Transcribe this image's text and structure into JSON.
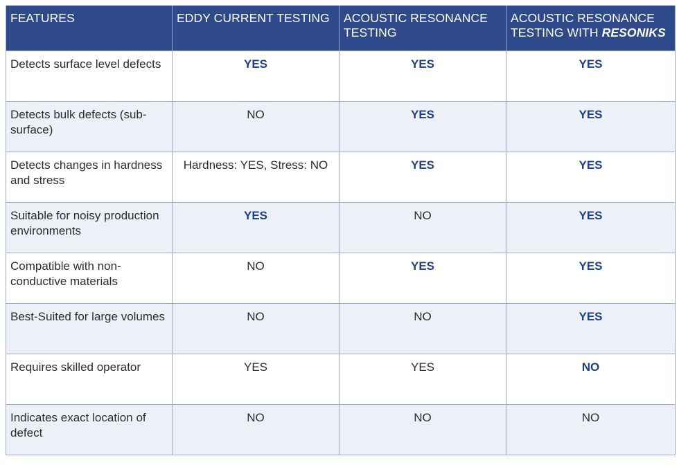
{
  "header": {
    "features": "FEATURES",
    "eddy": "EDDY CURRENT TESTING",
    "acoustic_line1": "ACOUSTIC RESONANCE",
    "acoustic_line2": "TESTING",
    "resoniks_line1": "ACOUSTIC RESONANCE",
    "resoniks_line2_prefix": "TESTING WITH ",
    "resoniks_brand": "RESONIKS"
  },
  "rows": [
    {
      "feature": "Detects surface level defects",
      "eddy": "YES",
      "eddy_bold": true,
      "acoustic": "YES",
      "acoustic_bold": true,
      "resoniks": "YES",
      "resoniks_bold": true
    },
    {
      "feature": "Detects bulk defects (sub-surface)",
      "eddy": "NO",
      "eddy_bold": false,
      "acoustic": "YES",
      "acoustic_bold": true,
      "resoniks": "YES",
      "resoniks_bold": true
    },
    {
      "feature": "Detects changes in hardness and stress",
      "eddy": "Hardness: YES, Stress: NO",
      "eddy_bold": false,
      "acoustic": "YES",
      "acoustic_bold": true,
      "resoniks": "YES",
      "resoniks_bold": true
    },
    {
      "feature": "Suitable for noisy production environments",
      "eddy": "YES",
      "eddy_bold": true,
      "acoustic": "NO",
      "acoustic_bold": false,
      "resoniks": "YES",
      "resoniks_bold": true
    },
    {
      "feature": "Compatible with non-conductive materials",
      "eddy": "NO",
      "eddy_bold": false,
      "acoustic": "YES",
      "acoustic_bold": true,
      "resoniks": "YES",
      "resoniks_bold": true
    },
    {
      "feature": "Best-Suited for large volumes",
      "eddy": "NO",
      "eddy_bold": false,
      "acoustic": "NO",
      "acoustic_bold": false,
      "resoniks": "YES",
      "resoniks_bold": true
    },
    {
      "feature": "Requires skilled operator",
      "eddy": "YES",
      "eddy_bold": false,
      "acoustic": "YES",
      "acoustic_bold": false,
      "resoniks": "NO",
      "resoniks_bold": true
    },
    {
      "feature": "Indicates exact location of defect",
      "eddy": "NO",
      "eddy_bold": false,
      "acoustic": "NO",
      "acoustic_bold": false,
      "resoniks": "NO",
      "resoniks_bold": false
    }
  ]
}
